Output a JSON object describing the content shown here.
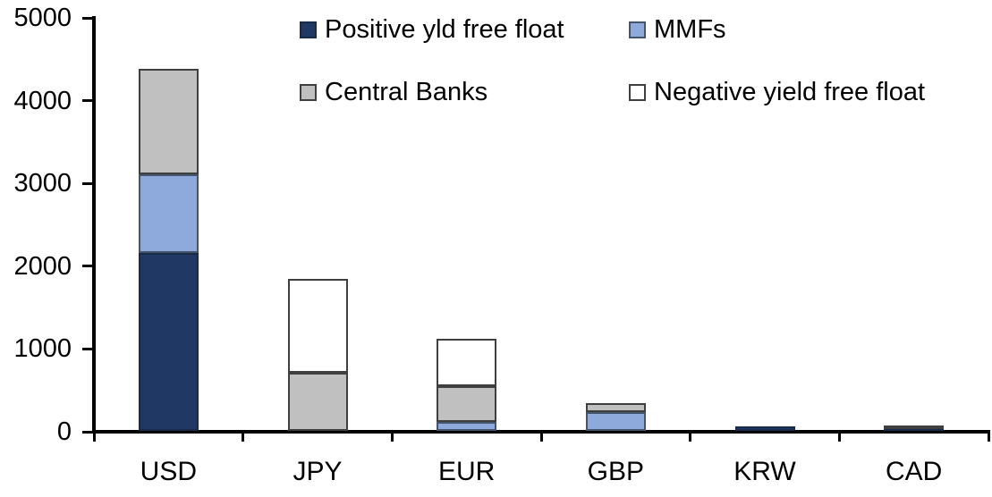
{
  "chart_data": {
    "type": "bar",
    "subtype": "stacked-vertical",
    "title": "",
    "xlabel": "",
    "ylabel": "",
    "categories": [
      "USD",
      "JPY",
      "EUR",
      "GBP",
      "KRW",
      "CAD"
    ],
    "series": [
      {
        "name": "Positive yld free float",
        "color": "#1F3864",
        "border": "#1A2B4A",
        "values": [
          2150,
          0,
          0,
          0,
          50,
          45
        ]
      },
      {
        "name": "MMFs",
        "color": "#8EA9DB",
        "border": "#44546A",
        "values": [
          950,
          0,
          110,
          230,
          0,
          0
        ]
      },
      {
        "name": "Central Banks",
        "color": "#C0C0C0",
        "border": "#3F3F3F",
        "values": [
          1270,
          700,
          430,
          110,
          0,
          25
        ]
      },
      {
        "name": "Negative yield free float",
        "color": "#FFFFFF",
        "border": "#3F3F3F",
        "values": [
          0,
          1140,
          570,
          0,
          0,
          0
        ]
      }
    ],
    "totals": [
      4370,
      1840,
      1110,
      340,
      50,
      70
    ],
    "ylim": [
      0,
      5000
    ],
    "yticks": [
      0,
      1000,
      2000,
      3000,
      4000,
      5000
    ],
    "legend_position": "top-inside-two-columns",
    "grid": false,
    "axis_color": "#000000",
    "text_color": "#000000",
    "background_color": "#FFFFFF"
  }
}
